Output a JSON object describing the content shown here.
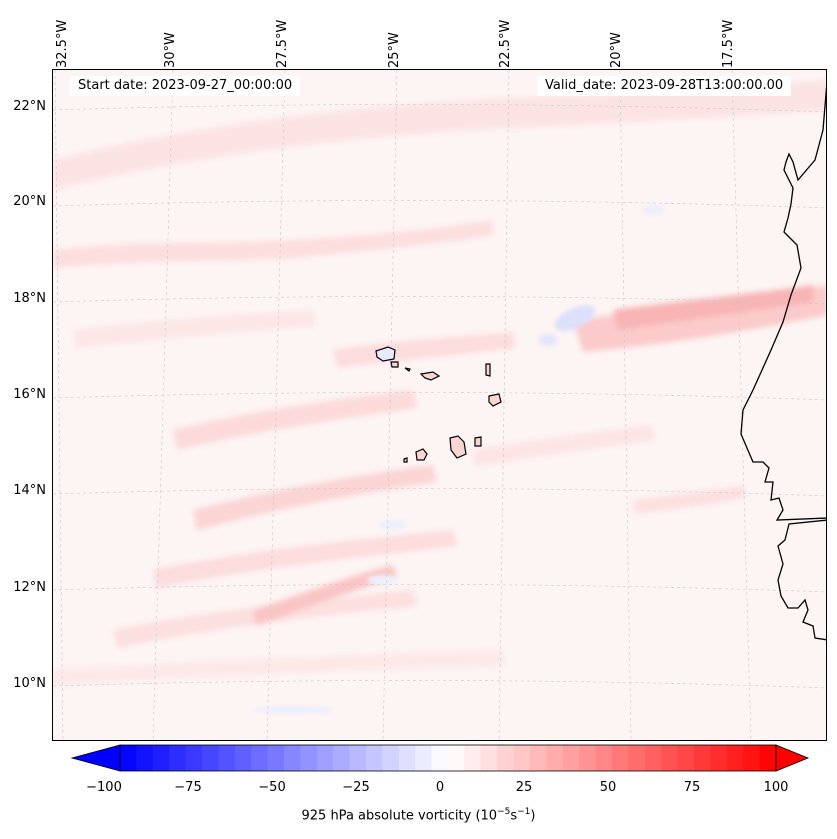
{
  "map": {
    "start_date": "Start date: 2023-09-27_00:00:00",
    "valid_date": "Valid_date: 2023-09-28T13:00:00.00",
    "lon_labels": [
      "32.5°W",
      "30°W",
      "27.5°W",
      "25°W",
      "22.5°W",
      "20°W",
      "17.5°W"
    ],
    "lat_labels": [
      "22°N",
      "20°N",
      "18°N",
      "16°N",
      "14°N",
      "12°N",
      "10°N"
    ],
    "extent": {
      "lon_min": -32.6,
      "lon_max": -15.6,
      "lat_min": 8.9,
      "lat_max": 22.8
    },
    "features": [
      "Cape Verde islands",
      "West African coastline"
    ],
    "gridlines": true,
    "colors": {
      "land_outline": "#000000",
      "grid": "#c8c8c8",
      "field_base": "#fdf4f4"
    }
  },
  "colorbar": {
    "ticks": [
      "−100",
      "−75",
      "−50",
      "−25",
      "0",
      "25",
      "50",
      "75",
      "100"
    ],
    "label_main": "925 hPa absolute vorticity (10",
    "label_exp1": "−5",
    "label_mid": "s",
    "label_exp2": "−1",
    "label_end": ")",
    "range": [
      -100,
      100
    ],
    "cmap": "bwr",
    "extend": "both"
  }
}
